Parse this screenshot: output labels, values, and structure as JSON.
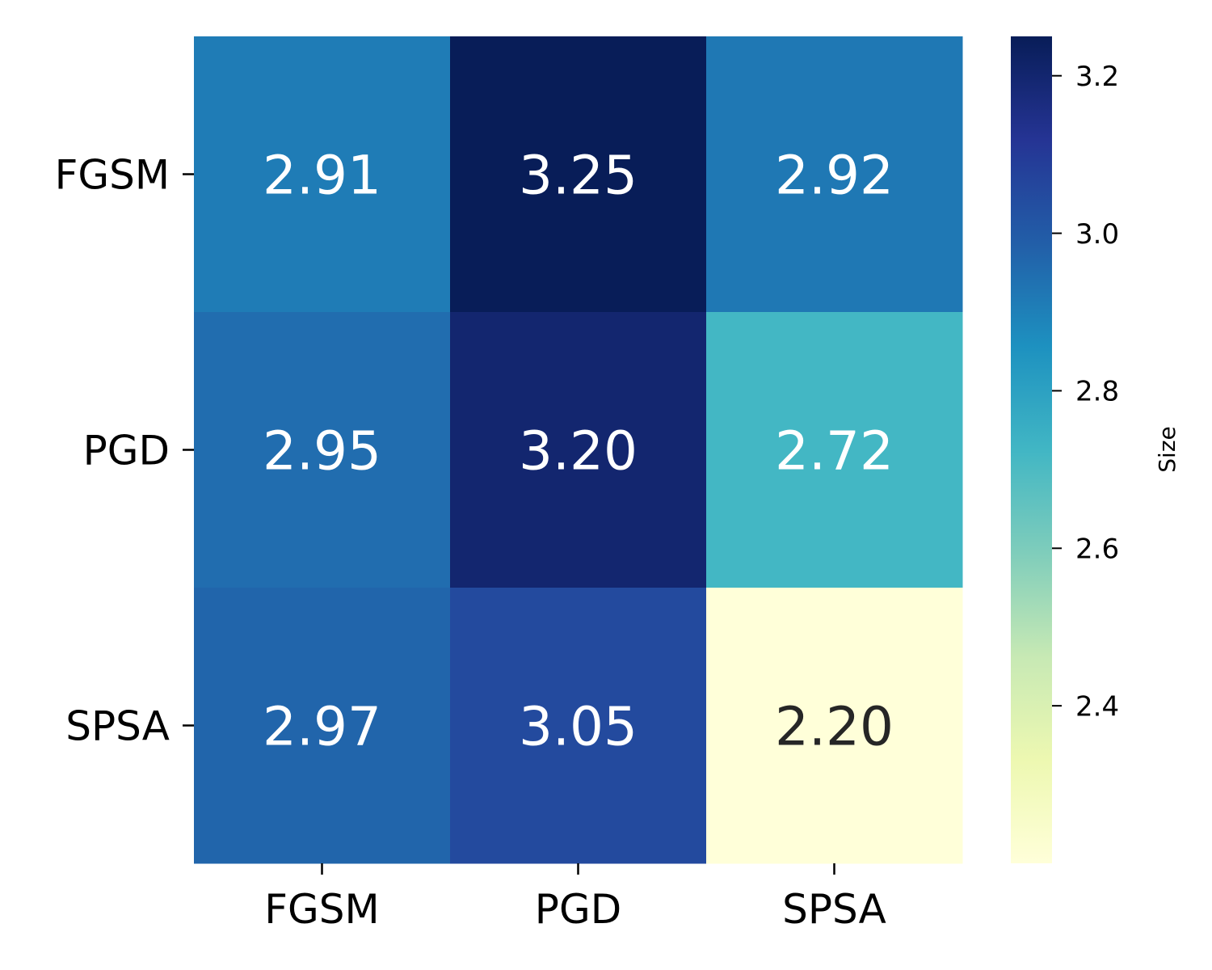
{
  "chart_data": {
    "type": "heatmap",
    "title": "",
    "xlabel": "",
    "ylabel": "",
    "row_labels": [
      "FGSM",
      "PGD",
      "SPSA"
    ],
    "col_labels": [
      "FGSM",
      "PGD",
      "SPSA"
    ],
    "values": [
      [
        2.91,
        3.25,
        2.92
      ],
      [
        2.95,
        3.2,
        2.72
      ],
      [
        2.97,
        3.05,
        2.2
      ]
    ],
    "cell_text": [
      [
        "2.91",
        "3.25",
        "2.92"
      ],
      [
        "2.95",
        "3.20",
        "2.72"
      ],
      [
        "2.97",
        "3.05",
        "2.20"
      ]
    ],
    "colormap": "YlGnBu",
    "vmin": 2.2,
    "vmax": 3.25,
    "colorbar": {
      "label": "Size",
      "ticks": [
        2.4,
        2.6,
        2.8,
        3.0,
        3.2
      ],
      "tick_labels": [
        "2.4",
        "2.6",
        "2.8",
        "3.0",
        "3.2"
      ]
    }
  }
}
